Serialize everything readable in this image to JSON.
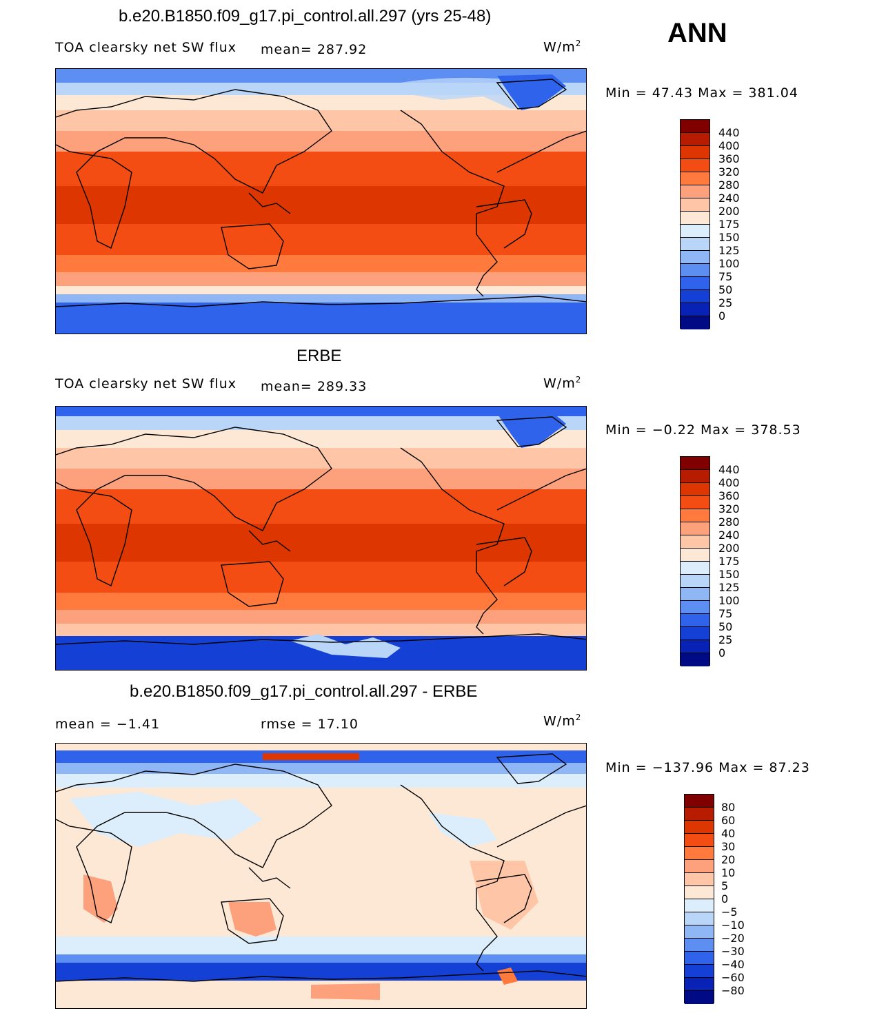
{
  "season": "ANN",
  "units_base": "W/m",
  "units_exp": "2",
  "panels": [
    {
      "title": "b.e20.B1850.f09_g17.pi_control.all.297 (yrs 25-48)",
      "variable": "TOA clearsky net SW flux",
      "mean_text": "mean= 287.92",
      "minmax_text": "Min =  47.43 Max = 381.04",
      "colorbar_labels": [
        "440",
        "400",
        "360",
        "320",
        "280",
        "240",
        "200",
        "175",
        "150",
        "125",
        "100",
        "75",
        "50",
        "25",
        "0"
      ],
      "colors": [
        "#800000",
        "#b71c00",
        "#de3600",
        "#f34d13",
        "#ff7a3c",
        "#fda07c",
        "#fec5a6",
        "#fde8d5",
        "#dcedfb",
        "#b9d6f8",
        "#8fb6f5",
        "#5d8ef2",
        "#2f63ec",
        "#1440d6",
        "#0922b6",
        "#000a85"
      ]
    },
    {
      "title": "ERBE",
      "variable": "TOA clearsky net SW flux",
      "mean_text": "mean= 289.33",
      "minmax_text": "Min =  −0.22 Max = 378.53",
      "colorbar_labels": [
        "440",
        "400",
        "360",
        "320",
        "280",
        "240",
        "200",
        "175",
        "150",
        "125",
        "100",
        "75",
        "50",
        "25",
        "0"
      ],
      "colors": [
        "#800000",
        "#b71c00",
        "#de3600",
        "#f34d13",
        "#ff7a3c",
        "#fda07c",
        "#fec5a6",
        "#fde8d5",
        "#dcedfb",
        "#b9d6f8",
        "#8fb6f5",
        "#5d8ef2",
        "#2f63ec",
        "#1440d6",
        "#0922b6",
        "#000a85"
      ]
    },
    {
      "title": "b.e20.B1850.f09_g17.pi_control.all.297 - ERBE",
      "mean_text": "mean =  −1.41",
      "rmse_text": "rmse =  17.10",
      "minmax_text": "Min = −137.96 Max =  87.23",
      "colorbar_labels": [
        "80",
        "60",
        "40",
        "30",
        "20",
        "10",
        "5",
        "0",
        "−5",
        "−10",
        "−20",
        "−30",
        "−40",
        "−60",
        "−80"
      ],
      "colors": [
        "#800000",
        "#b71c00",
        "#de3600",
        "#f34d13",
        "#ff7a3c",
        "#fda07c",
        "#fec5a6",
        "#fde8d5",
        "#dcedfb",
        "#b9d6f8",
        "#8fb6f5",
        "#5d8ef2",
        "#2f63ec",
        "#1440d6",
        "#0922b6",
        "#000a85"
      ]
    }
  ]
}
